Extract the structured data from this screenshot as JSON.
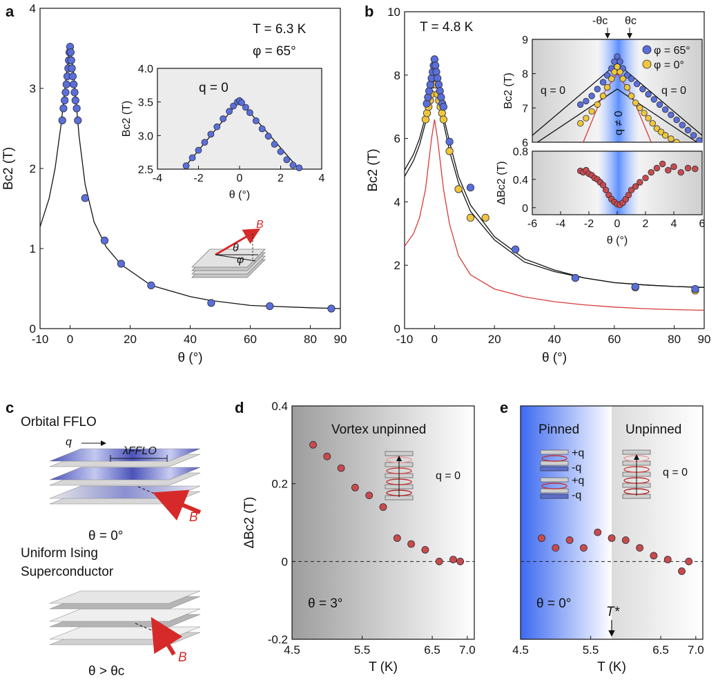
{
  "panels": {
    "a": {
      "label": "a",
      "t_label": "T = 6.3 K",
      "phi_label": "φ = 65°",
      "inset_annotation": "q = 0",
      "schematic_field": "B",
      "schematic_theta": "θ",
      "schematic_phi": "φ"
    },
    "b": {
      "label": "b",
      "t_label": "T = 4.8 K",
      "legend": [
        "φ = 65°",
        "φ = 0°"
      ],
      "region_left": "q = 0",
      "region_right": "q = 0",
      "region_center": "q ≠ 0",
      "marker_neg": "-θc",
      "marker_pos": "θc"
    },
    "c": {
      "label": "c",
      "title1": "Orbital FFLO",
      "q": "q",
      "lambda": "λFFLO",
      "field": "B",
      "theta1": "θ = 0°",
      "title2a": "Uniform Ising",
      "title2b": "Superconductor",
      "field2": "B",
      "theta2": "θ > θc"
    },
    "d": {
      "label": "d",
      "region": "Vortex unpinned",
      "q_label": "q = 0",
      "theta": "θ = 3°"
    },
    "e": {
      "label": "e",
      "region_left": "Pinned",
      "region_right": "Unpinned",
      "q_label": "q = 0",
      "theta": "θ = 0°",
      "t_star": "T*",
      "layer_labels": [
        "+q",
        "-q",
        "+q",
        "-q"
      ]
    }
  },
  "colors": {
    "blue": "#5a6fd8",
    "yellow": "#f0c63a",
    "red": "#c84b4b",
    "fit_red": "#d63a3a"
  },
  "chart_data": [
    {
      "type": "scatter",
      "panel": "a",
      "xlabel": "θ (°)",
      "ylabel": "Bc2 (T)",
      "xlim": [
        -10,
        90
      ],
      "ylim": [
        0,
        4
      ],
      "xticks": [
        -10,
        0,
        20,
        40,
        60,
        80,
        90
      ],
      "yticks": [
        0,
        1,
        2,
        3,
        4
      ],
      "series": [
        {
          "x": [
            -2.6,
            -2.2,
            -1.8,
            -1.5,
            -1.2,
            -0.9,
            -0.6,
            -0.4,
            -0.2,
            0,
            0.2,
            0.4,
            0.6,
            0.9,
            1.2,
            1.5,
            1.8,
            2.2,
            2.6,
            5,
            11.5,
            17,
            27,
            47,
            66.5,
            87
          ],
          "y": [
            2.6,
            2.75,
            2.85,
            2.95,
            3.05,
            3.15,
            3.25,
            3.35,
            3.45,
            3.52,
            3.45,
            3.35,
            3.25,
            3.15,
            3.05,
            2.95,
            2.85,
            2.75,
            2.6,
            1.63,
            1.1,
            0.81,
            0.54,
            0.32,
            0.28,
            0.25
          ]
        }
      ],
      "fit": {
        "x": [
          -10,
          -7,
          -5,
          -3,
          -1,
          0,
          1,
          3,
          5,
          8,
          12,
          17,
          27,
          40,
          47,
          60,
          66,
          80,
          90
        ],
        "y": [
          1.27,
          1.62,
          2.0,
          2.55,
          3.25,
          3.52,
          3.25,
          2.4,
          1.8,
          1.33,
          1.02,
          0.8,
          0.54,
          0.4,
          0.35,
          0.29,
          0.28,
          0.26,
          0.25
        ]
      }
    },
    {
      "type": "scatter",
      "panel": "a-inset",
      "xlabel": "θ (°)",
      "ylabel": "Bc2 (T)",
      "xlim": [
        -4,
        4
      ],
      "ylim": [
        2.5,
        4.0
      ],
      "xticks": [
        -4,
        -2,
        0,
        2,
        4
      ],
      "yticks": [
        2.5,
        3.0,
        3.5,
        4.0
      ],
      "series": [
        {
          "x": [
            -2.6,
            -2.3,
            -2.0,
            -1.7,
            -1.4,
            -1.1,
            -0.8,
            -0.5,
            -0.3,
            -0.1,
            0,
            0.1,
            0.3,
            0.5,
            0.8,
            1.1,
            1.4,
            1.7,
            2.0,
            2.3,
            2.6,
            2.9
          ],
          "y": [
            2.55,
            2.67,
            2.78,
            2.9,
            3.02,
            3.13,
            3.25,
            3.36,
            3.44,
            3.5,
            3.52,
            3.49,
            3.42,
            3.34,
            3.22,
            3.1,
            2.99,
            2.87,
            2.76,
            2.64,
            2.56,
            2.52
          ]
        }
      ],
      "fit": {
        "x": [
          -2.7,
          0,
          2.9
        ],
        "y": [
          2.52,
          3.52,
          2.5
        ]
      }
    },
    {
      "type": "scatter",
      "panel": "b",
      "xlabel": "θ (°)",
      "ylabel": "Bc2 (T)",
      "xlim": [
        -10,
        90
      ],
      "ylim": [
        0,
        10
      ],
      "xticks": [
        -10,
        0,
        20,
        40,
        60,
        80,
        90
      ],
      "yticks": [
        0,
        2,
        4,
        6,
        8,
        10
      ],
      "series": [
        {
          "name": "φ = 0°",
          "x": [
            -3,
            -2.5,
            -2,
            -1.5,
            -1,
            -0.5,
            0,
            0.5,
            1,
            1.5,
            2,
            2.5,
            3,
            5,
            8,
            12,
            17,
            27,
            47,
            67,
            87
          ],
          "y": [
            6.6,
            6.8,
            7.0,
            7.2,
            7.4,
            7.7,
            8.0,
            7.7,
            7.4,
            7.2,
            7.0,
            6.8,
            6.6,
            5.6,
            4.4,
            3.5,
            3.5,
            2.5,
            1.6,
            1.3,
            1.2
          ]
        },
        {
          "name": "φ = 65°",
          "x": [
            -2.6,
            -2.2,
            -1.8,
            -1.4,
            -1.0,
            -0.6,
            -0.3,
            0,
            0.3,
            0.6,
            1.0,
            1.4,
            1.8,
            2.2,
            2.6,
            3,
            5,
            12,
            27,
            47,
            67,
            87
          ],
          "y": [
            7.1,
            7.3,
            7.5,
            7.7,
            7.9,
            8.1,
            8.3,
            8.5,
            8.3,
            8.1,
            7.9,
            7.7,
            7.5,
            7.3,
            7.1,
            7.0,
            5.9,
            4.45,
            2.5,
            1.6,
            1.32,
            1.25
          ]
        }
      ],
      "fits": [
        {
          "color": "black",
          "x": [
            -10,
            -7,
            -5,
            -3,
            -1,
            0,
            1,
            3,
            5,
            8,
            12,
            20,
            30,
            40,
            50,
            60,
            70,
            80,
            90
          ],
          "y": [
            4.8,
            5.3,
            5.8,
            6.5,
            7.8,
            8.5,
            7.8,
            6.5,
            5.6,
            4.6,
            3.7,
            2.8,
            2.1,
            1.8,
            1.6,
            1.45,
            1.38,
            1.33,
            1.3
          ]
        },
        {
          "color": "black",
          "x": [
            -10,
            -7,
            -5,
            -3,
            -1,
            0,
            1,
            3,
            5,
            8,
            12,
            20,
            30,
            40,
            50,
            60,
            70,
            80,
            90
          ],
          "y": [
            5.0,
            5.5,
            6.0,
            6.7,
            7.8,
            8.0,
            7.8,
            6.7,
            5.9,
            4.8,
            3.9,
            2.9,
            2.2,
            1.85,
            1.6,
            1.45,
            1.38,
            1.33,
            1.3
          ]
        },
        {
          "color": "red",
          "x": [
            -10,
            -7,
            -5,
            -3,
            -1,
            0,
            1,
            3,
            5,
            8,
            12,
            20,
            30,
            40,
            50,
            60,
            70,
            80,
            90
          ],
          "y": [
            2.6,
            3.0,
            3.5,
            4.4,
            6.0,
            6.6,
            6.0,
            4.4,
            3.3,
            2.3,
            1.7,
            1.25,
            1.0,
            0.85,
            0.75,
            0.68,
            0.63,
            0.6,
            0.58
          ]
        }
      ]
    },
    {
      "type": "scatter",
      "panel": "b-inset-top",
      "ylabel": "Bc2 (T)",
      "xlim": [
        -6,
        6
      ],
      "ylim": [
        6,
        9
      ],
      "yticks": [
        6,
        7,
        8,
        9
      ],
      "series": [
        {
          "name": "φ = 65°",
          "x": [
            -2.6,
            -2.2,
            -1.8,
            -1.4,
            -1.0,
            -0.7,
            -0.4,
            -0.2,
            0,
            0.2,
            0.4,
            0.7,
            1.0,
            1.4,
            1.8,
            2.2,
            2.6,
            3.0,
            3.4,
            3.8,
            4.2,
            4.6,
            5.0,
            5.4,
            5.8
          ],
          "y": [
            7.1,
            7.2,
            7.35,
            7.55,
            7.75,
            7.95,
            8.15,
            8.35,
            8.5,
            8.35,
            8.15,
            7.95,
            7.85,
            7.7,
            7.55,
            7.4,
            7.25,
            7.1,
            6.95,
            6.8,
            6.65,
            6.5,
            6.35,
            6.2,
            6.05
          ]
        },
        {
          "name": "φ = 0°",
          "x": [
            -2.6,
            -2.2,
            -1.8,
            -1.4,
            -1.0,
            -0.7,
            -0.4,
            -0.2,
            0,
            0.2,
            0.4,
            0.7,
            1.0,
            1.3,
            1.6,
            1.9,
            2.2,
            2.5,
            2.8,
            3.1,
            3.4,
            3.8,
            4.2
          ],
          "y": [
            6.55,
            6.7,
            6.9,
            7.1,
            7.35,
            7.6,
            7.85,
            8.05,
            8.2,
            8.05,
            7.85,
            7.6,
            7.35,
            7.15,
            7.0,
            6.85,
            6.7,
            6.55,
            6.4,
            6.3,
            6.2,
            6.1,
            6.0
          ]
        }
      ],
      "fits": [
        {
          "color": "black",
          "x": [
            -6,
            0,
            6
          ],
          "y": [
            5.9,
            7.55,
            5.9
          ]
        },
        {
          "color": "black",
          "x": [
            -6,
            0,
            6
          ],
          "y": [
            6.2,
            8.3,
            6.2
          ]
        },
        {
          "color": "red",
          "x": [
            -2.4,
            -1,
            0,
            1,
            2.4
          ],
          "y": [
            6.0,
            7.4,
            8.0,
            7.4,
            6.0
          ]
        }
      ]
    },
    {
      "type": "scatter",
      "panel": "b-inset-bottom",
      "xlabel": "θ (°)",
      "ylabel": "ΔBc2 (T)",
      "xlim": [
        -6,
        6
      ],
      "ylim": [
        -0.1,
        0.8
      ],
      "xticks": [
        -6,
        -4,
        -2,
        0,
        2,
        4,
        6
      ],
      "yticks": [
        0,
        0.4,
        0.8
      ],
      "yticklabels": [
        "0",
        "0.4",
        "0.8"
      ],
      "series": [
        {
          "x": [
            -2.6,
            -2.4,
            -2.2,
            -2.0,
            -1.8,
            -1.6,
            -1.4,
            -1.2,
            -1.0,
            -0.8,
            -0.6,
            -0.4,
            -0.2,
            0,
            0.2,
            0.4,
            0.6,
            0.8,
            1.0,
            1.3,
            1.6,
            2.0,
            2.4,
            2.8,
            3.2,
            3.6,
            4.0,
            4.5,
            5.0,
            5.5
          ],
          "y": [
            0.52,
            0.5,
            0.53,
            0.48,
            0.46,
            0.42,
            0.4,
            0.36,
            0.32,
            0.25,
            0.18,
            0.12,
            0.08,
            0.05,
            0.04,
            0.07,
            0.12,
            0.18,
            0.25,
            0.3,
            0.36,
            0.42,
            0.5,
            0.56,
            0.62,
            0.53,
            0.58,
            0.5,
            0.56,
            0.55
          ]
        }
      ]
    },
    {
      "type": "scatter",
      "panel": "d",
      "xlabel": "T (K)",
      "ylabel": "ΔBc2 (T)",
      "xlim": [
        4.5,
        7.1
      ],
      "ylim": [
        -0.2,
        0.4
      ],
      "xticks": [
        4.5,
        5.5,
        6.5,
        7.0
      ],
      "xticklabels": [
        "4.5",
        "5.5",
        "6.5",
        "7.0"
      ],
      "yticks": [
        -0.2,
        0,
        0.2,
        0.4
      ],
      "yticklabels": [
        "-0.2",
        "0",
        "0.2",
        "0.4"
      ],
      "series": [
        {
          "x": [
            4.8,
            5.0,
            5.2,
            5.4,
            5.6,
            5.8,
            6.0,
            6.2,
            6.4,
            6.6,
            6.8,
            6.9
          ],
          "y": [
            0.3,
            0.27,
            0.24,
            0.19,
            0.17,
            0.14,
            0.06,
            0.045,
            0.03,
            0.0,
            0.005,
            0.0
          ]
        }
      ]
    },
    {
      "type": "scatter",
      "panel": "e",
      "xlabel": "T (K)",
      "xlim": [
        4.5,
        7.1
      ],
      "ylim": [
        -0.2,
        0.4
      ],
      "xticks": [
        4.5,
        5.5,
        6.5,
        7.0
      ],
      "xticklabels": [
        "4.5",
        "5.5",
        "6.5",
        "7.0"
      ],
      "series": [
        {
          "x": [
            4.8,
            5.0,
            5.2,
            5.4,
            5.6,
            5.8,
            6.0,
            6.2,
            6.4,
            6.6,
            6.8,
            6.9
          ],
          "y": [
            0.06,
            0.035,
            0.055,
            0.035,
            0.075,
            0.06,
            0.055,
            0.035,
            0.015,
            0.005,
            -0.025,
            0.0
          ]
        }
      ]
    }
  ]
}
